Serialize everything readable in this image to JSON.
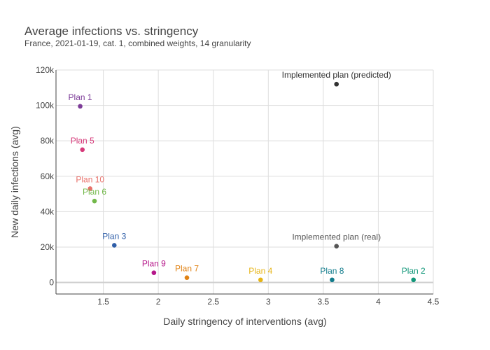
{
  "chart_data": {
    "type": "scatter",
    "title": "Average infections vs. stringency",
    "subtitle": "France, 2021-01-19, cat. 1, combined weights, 14 granularity",
    "xlabel": "Daily stringency of interventions (avg)",
    "ylabel": "New daily infections (avg)",
    "xlim": [
      1.07,
      4.5
    ],
    "ylim": [
      -6500,
      120000
    ],
    "xticks": [
      1.5,
      2,
      2.5,
      3,
      3.5,
      4,
      4.5
    ],
    "xtick_labels": [
      "1.5",
      "2",
      "2.5",
      "3",
      "3.5",
      "4",
      "4.5"
    ],
    "yticks": [
      0,
      20000,
      40000,
      60000,
      80000,
      100000,
      120000
    ],
    "ytick_labels": [
      "0",
      "20k",
      "40k",
      "60k",
      "80k",
      "100k",
      "120k"
    ],
    "grid": true,
    "points": [
      {
        "label": "Plan 1",
        "x": 1.29,
        "y": 99500,
        "color": "#7d3c98"
      },
      {
        "label": "Plan 5",
        "x": 1.31,
        "y": 75000,
        "color": "#d63a7a"
      },
      {
        "label": "Plan 10",
        "x": 1.38,
        "y": 53000,
        "color": "#e8716b"
      },
      {
        "label": "Plan 6",
        "x": 1.42,
        "y": 46000,
        "color": "#72b84a"
      },
      {
        "label": "Plan 3",
        "x": 1.6,
        "y": 21000,
        "color": "#2f5ea8"
      },
      {
        "label": "Plan 9",
        "x": 1.96,
        "y": 5500,
        "color": "#b5178a"
      },
      {
        "label": "Plan 7",
        "x": 2.26,
        "y": 2700,
        "color": "#e08214"
      },
      {
        "label": "Plan 4",
        "x": 2.93,
        "y": 1500,
        "color": "#e6b416"
      },
      {
        "label": "Plan 8",
        "x": 3.58,
        "y": 1500,
        "color": "#127c8c"
      },
      {
        "label": "Plan 2",
        "x": 4.32,
        "y": 1500,
        "color": "#12977a"
      },
      {
        "label": "Implemented plan (predicted)",
        "x": 3.62,
        "y": 112000,
        "color": "#333333"
      },
      {
        "label": "Implemented plan (real)",
        "x": 3.62,
        "y": 20500,
        "color": "#555555"
      }
    ]
  }
}
